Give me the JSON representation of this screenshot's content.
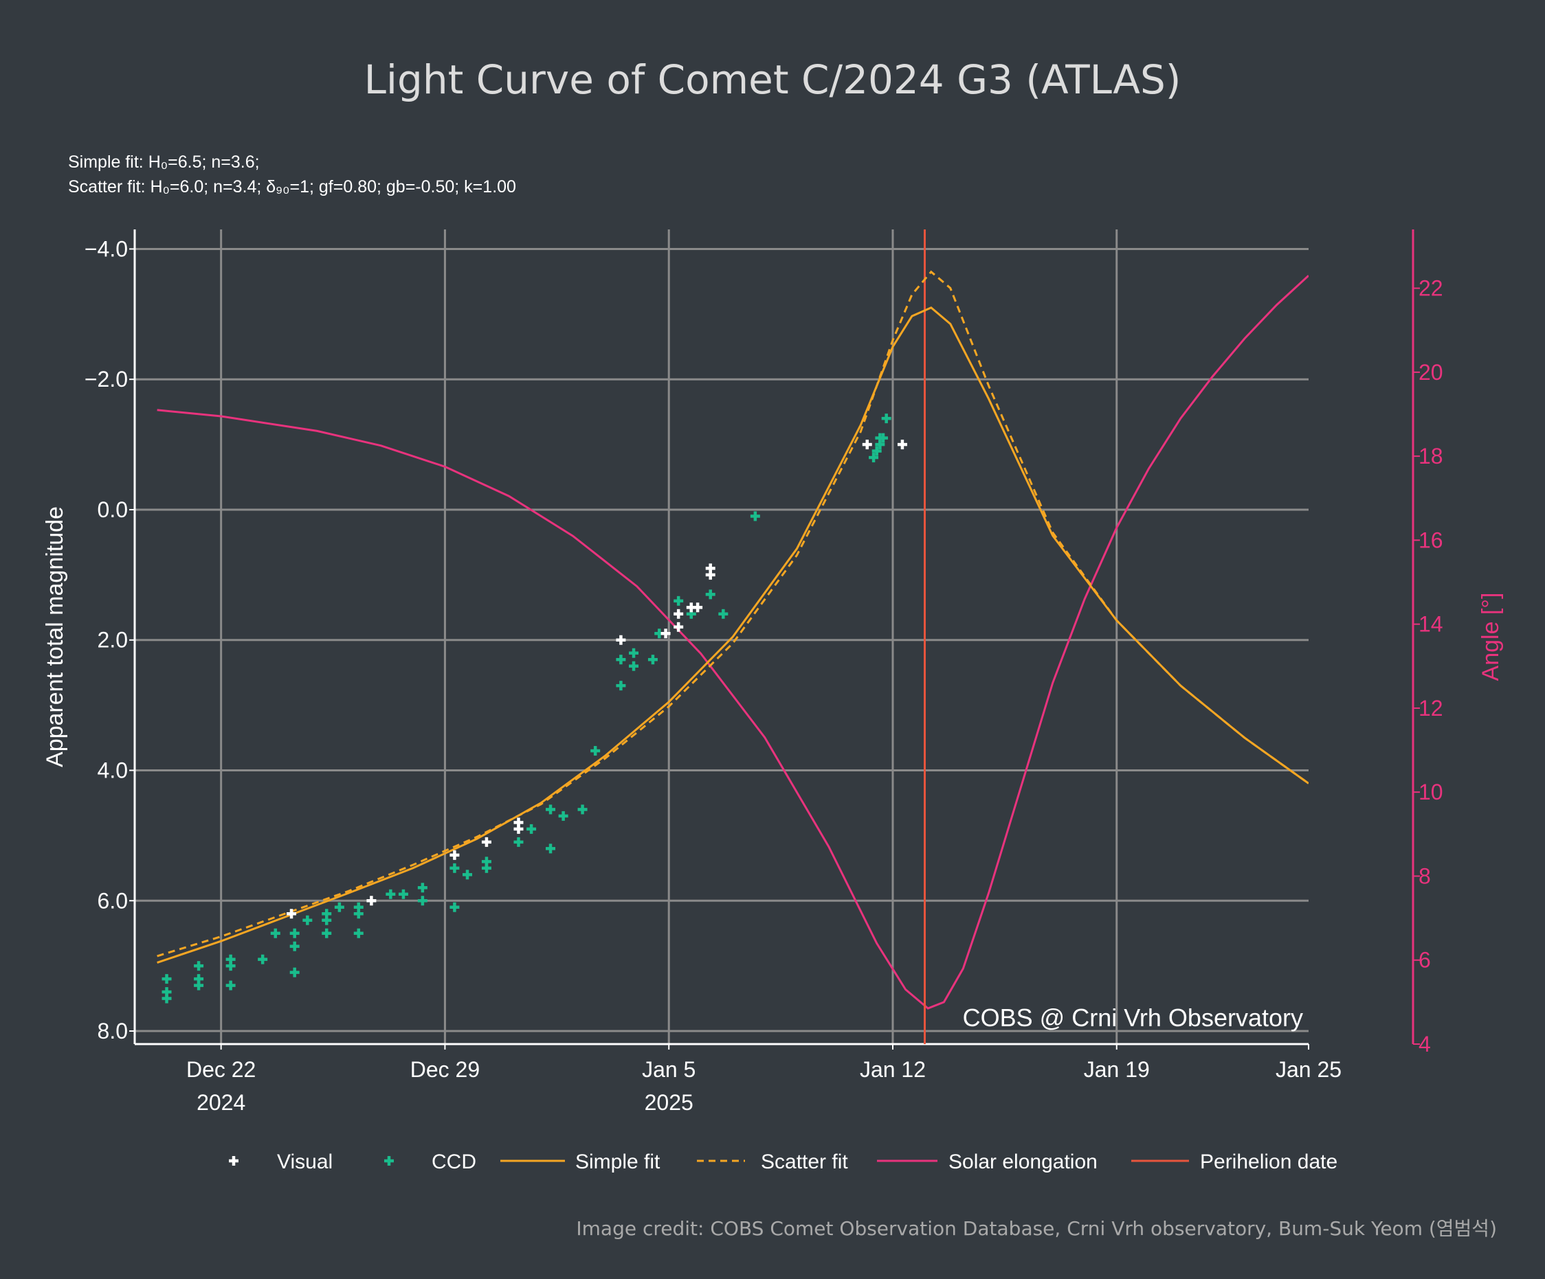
{
  "chart_data": {
    "type": "scatter",
    "title": "Light Curve of Comet C/2024 G3 (ATLAS)",
    "subtitle_lines": [
      "Simple fit: H₀=6.5; n=3.6;",
      "Scatter fit: H₀=6.0; n=3.4; δ₉₀=1; gf=0.80; gb=-0.50; k=1.00"
    ],
    "xlabel": "",
    "ylabel": "Apparent total magnitude",
    "y2label": "Angle [°]",
    "x_unit": "days since Dec 22 2024",
    "xlim": [
      -2.7,
      34.0
    ],
    "ylim": [
      8.2,
      -4.3
    ],
    "y2lim": [
      4.0,
      23.4
    ],
    "x_ticks": [
      {
        "x": 0,
        "label": "Dec 22",
        "sub": "2024"
      },
      {
        "x": 7,
        "label": "Dec 29",
        "sub": ""
      },
      {
        "x": 14,
        "label": "Jan 5",
        "sub": "2025"
      },
      {
        "x": 21,
        "label": "Jan 12",
        "sub": ""
      },
      {
        "x": 28,
        "label": "Jan 19",
        "sub": ""
      },
      {
        "x": 34,
        "label": "Jan 25",
        "sub": ""
      }
    ],
    "y_ticks": [
      {
        "v": -4,
        "label": "−4.0"
      },
      {
        "v": -2,
        "label": "−2.0"
      },
      {
        "v": 0,
        "label": "0.0"
      },
      {
        "v": 2,
        "label": "2.0"
      },
      {
        "v": 4,
        "label": "4.0"
      },
      {
        "v": 6,
        "label": "6.0"
      },
      {
        "v": 8,
        "label": "8.0"
      }
    ],
    "y2_ticks": [
      4,
      6,
      8,
      10,
      12,
      14,
      16,
      18,
      20,
      22
    ],
    "perihelion_x": 22.0,
    "watermark": "COBS @ Crni Vrh Observatory",
    "colors": {
      "visual": "#ffffff",
      "ccd": "#1abc8c",
      "fit": "#f5a623",
      "elongation": "#e8337d",
      "perihelion": "#e8553d",
      "grid": "#8a8a8a"
    },
    "legend": [
      {
        "key": "visual",
        "label": "Visual"
      },
      {
        "key": "ccd",
        "label": "CCD"
      },
      {
        "key": "simple",
        "label": "Simple fit"
      },
      {
        "key": "scatter",
        "label": "Scatter fit"
      },
      {
        "key": "elong",
        "label": "Solar elongation"
      },
      {
        "key": "peri",
        "label": "Perihelion date"
      }
    ],
    "series": [
      {
        "name": "Visual",
        "kind": "points",
        "points": [
          [
            2.2,
            6.2
          ],
          [
            4.7,
            6.0
          ],
          [
            7.3,
            5.3
          ],
          [
            8.3,
            5.1
          ],
          [
            9.3,
            4.8
          ],
          [
            9.3,
            4.9
          ],
          [
            12.5,
            2.0
          ],
          [
            13.9,
            1.9
          ],
          [
            14.3,
            1.6
          ],
          [
            14.3,
            1.8
          ],
          [
            14.7,
            1.5
          ],
          [
            14.9,
            1.5
          ],
          [
            15.3,
            0.9
          ],
          [
            15.3,
            1.0
          ],
          [
            20.2,
            -1.0
          ],
          [
            21.3,
            -1.0
          ]
        ]
      },
      {
        "name": "CCD",
        "kind": "points",
        "points": [
          [
            -1.7,
            7.2
          ],
          [
            -1.7,
            7.4
          ],
          [
            -1.7,
            7.5
          ],
          [
            -0.7,
            7.0
          ],
          [
            -0.7,
            7.2
          ],
          [
            -0.7,
            7.3
          ],
          [
            0.3,
            6.9
          ],
          [
            0.3,
            7.0
          ],
          [
            0.3,
            7.3
          ],
          [
            1.3,
            6.9
          ],
          [
            1.7,
            6.5
          ],
          [
            2.3,
            6.5
          ],
          [
            2.3,
            6.7
          ],
          [
            2.3,
            7.1
          ],
          [
            2.7,
            6.3
          ],
          [
            3.3,
            6.2
          ],
          [
            3.3,
            6.3
          ],
          [
            3.3,
            6.5
          ],
          [
            3.7,
            6.1
          ],
          [
            4.3,
            6.1
          ],
          [
            4.3,
            6.2
          ],
          [
            4.3,
            6.5
          ],
          [
            5.3,
            5.9
          ],
          [
            5.7,
            5.9
          ],
          [
            6.3,
            5.8
          ],
          [
            6.3,
            6.0
          ],
          [
            7.3,
            5.5
          ],
          [
            7.3,
            6.1
          ],
          [
            7.7,
            5.6
          ],
          [
            8.3,
            5.4
          ],
          [
            8.3,
            5.5
          ],
          [
            9.3,
            5.1
          ],
          [
            9.7,
            4.9
          ],
          [
            10.3,
            4.6
          ],
          [
            10.3,
            5.2
          ],
          [
            10.7,
            4.7
          ],
          [
            11.3,
            4.6
          ],
          [
            11.7,
            3.7
          ],
          [
            12.5,
            2.3
          ],
          [
            12.5,
            2.7
          ],
          [
            12.9,
            2.2
          ],
          [
            12.9,
            2.4
          ],
          [
            13.5,
            2.3
          ],
          [
            13.7,
            1.9
          ],
          [
            14.3,
            1.4
          ],
          [
            14.7,
            1.6
          ],
          [
            15.3,
            1.3
          ],
          [
            15.7,
            1.6
          ],
          [
            16.7,
            0.1
          ],
          [
            20.4,
            -0.8
          ],
          [
            20.5,
            -0.9
          ],
          [
            20.6,
            -1.0
          ],
          [
            20.6,
            -1.1
          ],
          [
            20.7,
            -1.1
          ],
          [
            20.8,
            -1.4
          ]
        ]
      },
      {
        "name": "Simple fit",
        "kind": "line",
        "points": [
          [
            -2.0,
            6.95
          ],
          [
            0,
            6.62
          ],
          [
            2,
            6.25
          ],
          [
            4,
            5.88
          ],
          [
            6,
            5.5
          ],
          [
            8,
            5.05
          ],
          [
            10,
            4.5
          ],
          [
            12,
            3.78
          ],
          [
            14,
            2.95
          ],
          [
            16,
            1.95
          ],
          [
            18,
            0.6
          ],
          [
            20,
            -1.3
          ],
          [
            21,
            -2.5
          ],
          [
            21.6,
            -2.97
          ],
          [
            22.2,
            -3.1
          ],
          [
            22.8,
            -2.85
          ],
          [
            24,
            -1.7
          ],
          [
            26,
            0.4
          ],
          [
            28,
            1.7
          ],
          [
            30,
            2.7
          ],
          [
            32,
            3.5
          ],
          [
            34,
            4.2
          ]
        ]
      },
      {
        "name": "Scatter fit",
        "kind": "line",
        "dashed": true,
        "points": [
          [
            -2.0,
            6.85
          ],
          [
            0,
            6.55
          ],
          [
            2,
            6.2
          ],
          [
            4,
            5.85
          ],
          [
            6,
            5.45
          ],
          [
            8,
            5.02
          ],
          [
            10,
            4.52
          ],
          [
            12,
            3.82
          ],
          [
            14,
            3.02
          ],
          [
            16,
            2.05
          ],
          [
            18,
            0.7
          ],
          [
            20,
            -1.2
          ],
          [
            21,
            -2.6
          ],
          [
            21.6,
            -3.3
          ],
          [
            22.2,
            -3.65
          ],
          [
            22.8,
            -3.4
          ],
          [
            24,
            -1.9
          ],
          [
            26,
            0.35
          ],
          [
            28,
            1.7
          ],
          [
            30,
            2.7
          ],
          [
            32,
            3.5
          ],
          [
            34,
            4.2
          ]
        ]
      },
      {
        "name": "Solar elongation",
        "kind": "line",
        "axis": "y2",
        "points": [
          [
            -2,
            19.1
          ],
          [
            0,
            18.95
          ],
          [
            3,
            18.6
          ],
          [
            5,
            18.25
          ],
          [
            7,
            17.75
          ],
          [
            9,
            17.05
          ],
          [
            11,
            16.1
          ],
          [
            13,
            14.9
          ],
          [
            15,
            13.3
          ],
          [
            17,
            11.3
          ],
          [
            19,
            8.7
          ],
          [
            20.5,
            6.4
          ],
          [
            21.4,
            5.3
          ],
          [
            22.1,
            4.85
          ],
          [
            22.6,
            5.0
          ],
          [
            23.2,
            5.8
          ],
          [
            24,
            7.6
          ],
          [
            25,
            10.1
          ],
          [
            26,
            12.6
          ],
          [
            27,
            14.6
          ],
          [
            28,
            16.3
          ],
          [
            29,
            17.7
          ],
          [
            30,
            18.9
          ],
          [
            31,
            19.9
          ],
          [
            32,
            20.8
          ],
          [
            33,
            21.6
          ],
          [
            34,
            22.3
          ]
        ]
      },
      {
        "name": "Perihelion date",
        "kind": "vline",
        "x": 22.0
      }
    ]
  },
  "credit": "Image credit: COBS Comet Observation Database, Crni Vrh observatory, Bum-Suk Yeom (염범석)"
}
